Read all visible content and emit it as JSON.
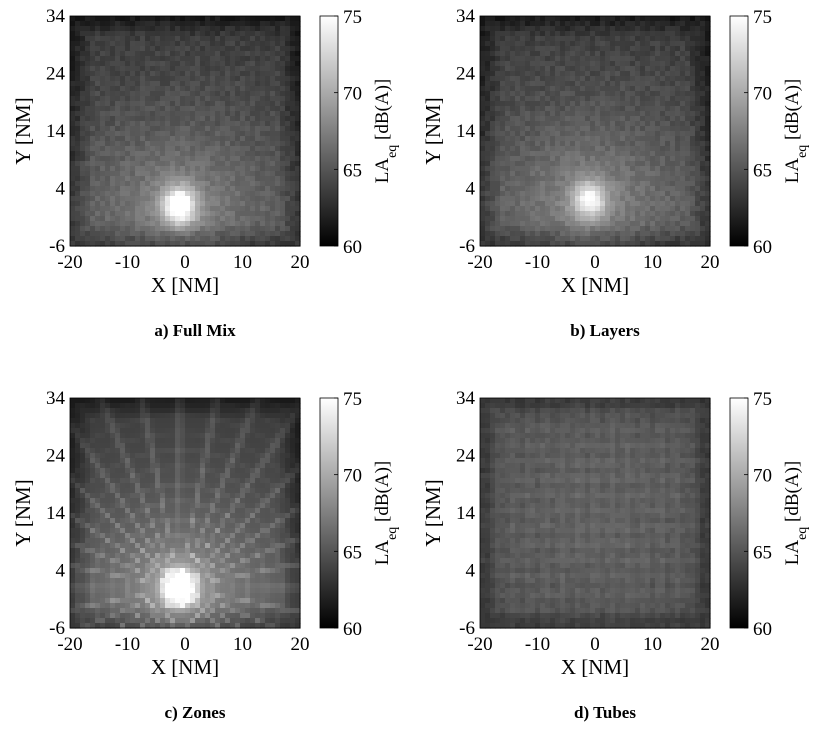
{
  "colorbar": {
    "min": 60,
    "max": 75,
    "ticks": [
      "75",
      "70",
      "65",
      "60"
    ],
    "label_main": "LA",
    "label_sub": "eq",
    "label_unit": " [dB(A)]"
  },
  "chart_data": [
    {
      "type": "heatmap",
      "caption": "a)  Full Mix",
      "xlabel": "X [NM]",
      "ylabel": "Y [NM]",
      "xlim": [
        -20,
        20
      ],
      "ylim": [
        -6,
        34
      ],
      "xticks": [
        "-20",
        "-10",
        "0",
        "10",
        "20"
      ],
      "yticks": [
        "34",
        "24",
        "14",
        "4",
        "-6"
      ],
      "colorbar_range": [
        60,
        75
      ],
      "pattern": "diffuse",
      "hotspot": {
        "x": -1,
        "y": 1,
        "peak": 75
      }
    },
    {
      "type": "heatmap",
      "caption": "b)  Layers",
      "xlabel": "X [NM]",
      "ylabel": "Y [NM]",
      "xlim": [
        -20,
        20
      ],
      "ylim": [
        -6,
        34
      ],
      "xticks": [
        "-20",
        "-10",
        "0",
        "10",
        "20"
      ],
      "yticks": [
        "34",
        "24",
        "14",
        "4",
        "-6"
      ],
      "colorbar_range": [
        60,
        75
      ],
      "pattern": "diffuse",
      "hotspot": {
        "x": -1,
        "y": 2,
        "peak": 73
      }
    },
    {
      "type": "heatmap",
      "caption": "c)  Zones",
      "xlabel": "X [NM]",
      "ylabel": "Y [NM]",
      "xlim": [
        -20,
        20
      ],
      "ylim": [
        -6,
        34
      ],
      "xticks": [
        "-20",
        "-10",
        "0",
        "10",
        "20"
      ],
      "yticks": [
        "34",
        "24",
        "14",
        "4",
        "-6"
      ],
      "colorbar_range": [
        60,
        75
      ],
      "pattern": "radial",
      "hotspot": {
        "x": -1,
        "y": 1,
        "peak": 75
      }
    },
    {
      "type": "heatmap",
      "caption": "d)  Tubes",
      "xlabel": "X [NM]",
      "ylabel": "Y [NM]",
      "xlim": [
        -20,
        20
      ],
      "ylim": [
        -6,
        34
      ],
      "xticks": [
        "-20",
        "-10",
        "0",
        "10",
        "20"
      ],
      "yticks": [
        "34",
        "24",
        "14",
        "4",
        "-6"
      ],
      "colorbar_range": [
        60,
        75
      ],
      "pattern": "grid",
      "hotspot": {
        "x": 0,
        "y": 14,
        "peak": 68
      }
    }
  ]
}
